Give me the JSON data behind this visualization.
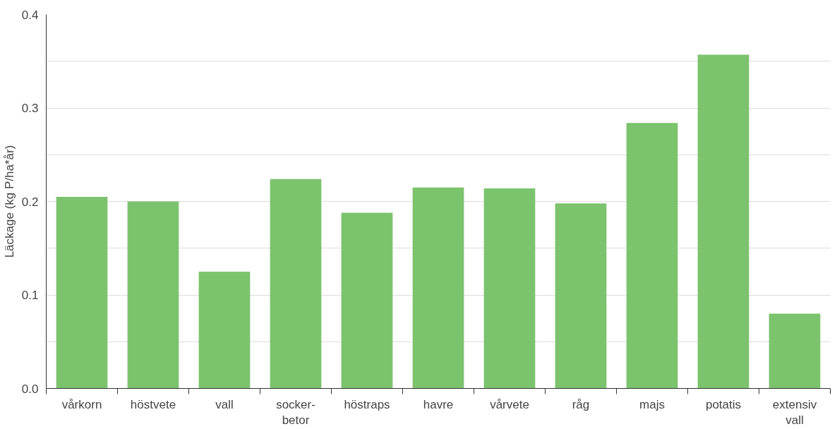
{
  "chart_data": {
    "type": "bar",
    "ylabel": "Läckage (kg P/ha*år)",
    "categories": [
      "vårkorn",
      "höstvete",
      "vall",
      "socker-\nbetor",
      "höstraps",
      "havre",
      "vårvete",
      "råg",
      "majs",
      "potatis",
      "extensiv\nvall"
    ],
    "values": [
      0.205,
      0.2,
      0.125,
      0.224,
      0.188,
      0.215,
      0.214,
      0.198,
      0.284,
      0.357,
      0.08
    ],
    "color": "#7cc36e",
    "ylim": [
      0,
      0.4
    ],
    "yticks": [
      {
        "value": 0,
        "label": "0.0"
      },
      {
        "value": 0.05,
        "label": null
      },
      0.1,
      {
        "value": 0.15,
        "label": null
      },
      0.2,
      {
        "value": 0.25,
        "label": null
      },
      0.3,
      {
        "value": 0.35,
        "label": null
      },
      0.4
    ],
    "grid": "y"
  }
}
